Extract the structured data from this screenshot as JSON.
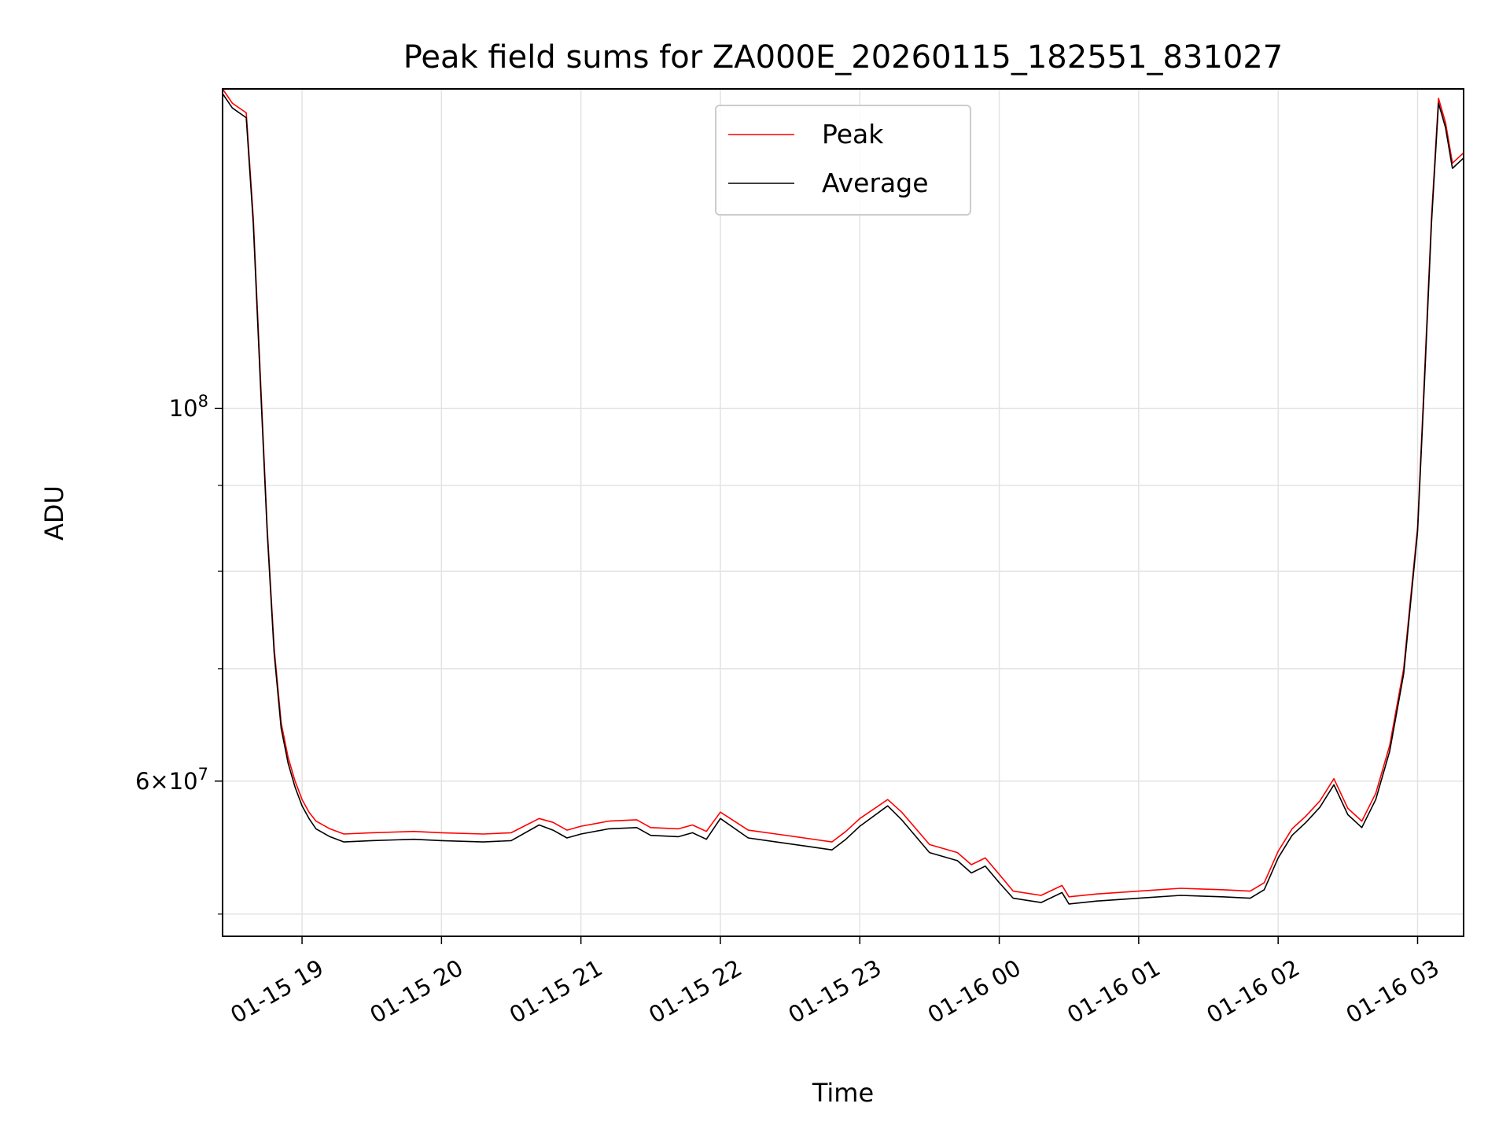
{
  "chart_data": {
    "type": "line",
    "title": "Peak field sums for ZA000E_20260115_182551_831027",
    "xlabel": "Time",
    "ylabel": "ADU",
    "y_scale": "log",
    "ylim": [
      48500000,
      155000000
    ],
    "xlim_hours": [
      18.43,
      27.33
    ],
    "grid": true,
    "legend_position": "upper center",
    "x_ticks": [
      {
        "value": 19,
        "label": "01-15 19"
      },
      {
        "value": 20,
        "label": "01-15 20"
      },
      {
        "value": 21,
        "label": "01-15 21"
      },
      {
        "value": 22,
        "label": "01-15 22"
      },
      {
        "value": 23,
        "label": "01-15 23"
      },
      {
        "value": 24,
        "label": "01-16 00"
      },
      {
        "value": 25,
        "label": "01-16 01"
      },
      {
        "value": 26,
        "label": "01-16 02"
      },
      {
        "value": 27,
        "label": "01-16 03"
      }
    ],
    "y_major_ticks": [
      {
        "value": 100000000,
        "base": "10",
        "exp": "8",
        "mantissa": ""
      },
      {
        "value": 60000000,
        "base": "10",
        "exp": "7",
        "mantissa": "6×"
      }
    ],
    "y_minor_ticks": [
      50000000,
      70000000,
      80000000,
      90000000
    ],
    "series": [
      {
        "name": "Peak",
        "color": "#ff0000",
        "x_hours": [
          18.43,
          18.5,
          18.6,
          18.65,
          18.7,
          18.75,
          18.8,
          18.85,
          18.9,
          18.95,
          19.0,
          19.05,
          19.1,
          19.2,
          19.3,
          19.5,
          19.8,
          20.0,
          20.3,
          20.5,
          20.7,
          20.8,
          20.9,
          21.0,
          21.2,
          21.4,
          21.5,
          21.7,
          21.8,
          21.9,
          22.0,
          22.2,
          22.4,
          22.6,
          22.8,
          22.9,
          23.0,
          23.2,
          23.3,
          23.5,
          23.7,
          23.8,
          23.9,
          24.0,
          24.1,
          24.3,
          24.45,
          24.5,
          24.7,
          25.0,
          25.3,
          25.6,
          25.8,
          25.9,
          26.0,
          26.1,
          26.2,
          26.3,
          26.4,
          26.5,
          26.6,
          26.7,
          26.8,
          26.9,
          27.0,
          27.05,
          27.1,
          27.15,
          27.2,
          27.25,
          27.33
        ],
        "values": [
          155000000,
          152000000,
          150000000,
          130000000,
          105000000,
          85000000,
          72000000,
          65000000,
          62000000,
          60000000,
          58500000,
          57500000,
          56800000,
          56200000,
          55800000,
          55900000,
          56000000,
          55900000,
          55800000,
          55900000,
          57000000,
          56700000,
          56100000,
          56400000,
          56800000,
          56900000,
          56300000,
          56200000,
          56500000,
          56000000,
          57500000,
          56100000,
          55800000,
          55500000,
          55200000,
          56000000,
          57000000,
          58500000,
          57500000,
          55000000,
          54400000,
          53500000,
          54000000,
          52800000,
          51600000,
          51300000,
          52000000,
          51200000,
          51400000,
          51600000,
          51800000,
          51700000,
          51600000,
          52200000,
          54500000,
          56200000,
          57200000,
          58400000,
          60200000,
          57800000,
          56800000,
          59000000,
          63000000,
          70000000,
          85000000,
          105000000,
          130000000,
          153000000,
          148000000,
          140000000,
          142000000
        ]
      },
      {
        "name": "Average",
        "color": "#000000",
        "x_hours": [
          18.43,
          18.5,
          18.6,
          18.65,
          18.7,
          18.75,
          18.8,
          18.85,
          18.9,
          18.95,
          19.0,
          19.05,
          19.1,
          19.2,
          19.3,
          19.5,
          19.8,
          20.0,
          20.3,
          20.5,
          20.7,
          20.8,
          20.9,
          21.0,
          21.2,
          21.4,
          21.5,
          21.7,
          21.8,
          21.9,
          22.0,
          22.2,
          22.4,
          22.6,
          22.8,
          22.9,
          23.0,
          23.2,
          23.3,
          23.5,
          23.7,
          23.8,
          23.9,
          24.0,
          24.1,
          24.3,
          24.45,
          24.5,
          24.7,
          25.0,
          25.3,
          25.6,
          25.8,
          25.9,
          26.0,
          26.1,
          26.2,
          26.3,
          26.4,
          26.5,
          26.6,
          26.7,
          26.8,
          26.9,
          27.0,
          27.05,
          27.1,
          27.15,
          27.2,
          27.25,
          27.33
        ],
        "values": [
          154000000,
          151000000,
          149000000,
          129000000,
          104000000,
          84500000,
          71500000,
          64500000,
          61500000,
          59500000,
          58000000,
          57000000,
          56200000,
          55600000,
          55200000,
          55300000,
          55400000,
          55300000,
          55200000,
          55300000,
          56500000,
          56100000,
          55500000,
          55800000,
          56200000,
          56300000,
          55700000,
          55600000,
          55900000,
          55400000,
          57000000,
          55500000,
          55200000,
          54900000,
          54600000,
          55400000,
          56400000,
          58000000,
          56900000,
          54400000,
          53800000,
          52900000,
          53400000,
          52200000,
          51100000,
          50800000,
          51500000,
          50700000,
          50900000,
          51100000,
          51300000,
          51200000,
          51100000,
          51700000,
          54000000,
          55700000,
          56700000,
          57900000,
          59700000,
          57300000,
          56300000,
          58500000,
          62500000,
          69500000,
          84500000,
          104000000,
          129000000,
          152000000,
          147000000,
          139000000,
          141000000
        ]
      }
    ]
  }
}
